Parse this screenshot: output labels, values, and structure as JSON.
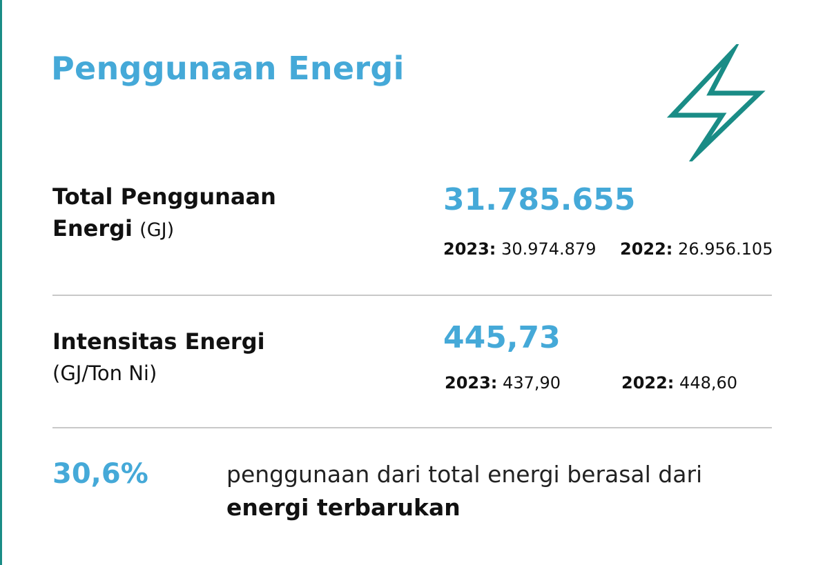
{
  "title": "Penggunaan Energi",
  "icon": "lightning-bolt-icon",
  "colors": {
    "accent": "#45a9d8",
    "icon": "#1a8c86",
    "divider": "#c8c8c8"
  },
  "total": {
    "label_line1": "Total Penggunaan",
    "label_line2": "Energi",
    "unit": "(GJ)",
    "value": "31.785.655",
    "y2023_label": "2023:",
    "y2023_value": "30.974.879",
    "y2022_label": "2022:",
    "y2022_value": "26.956.105"
  },
  "intensity": {
    "label": "Intensitas Energi",
    "unit": "(GJ/Ton Ni)",
    "value": "445,73",
    "y2023_label": "2023:",
    "y2023_value": "437,90",
    "y2022_label": "2022:",
    "y2022_value": "448,60"
  },
  "renewable": {
    "percent": "30,6%",
    "text": "penggunaan dari total energi berasal dari",
    "text_bold": "energi terbarukan"
  }
}
